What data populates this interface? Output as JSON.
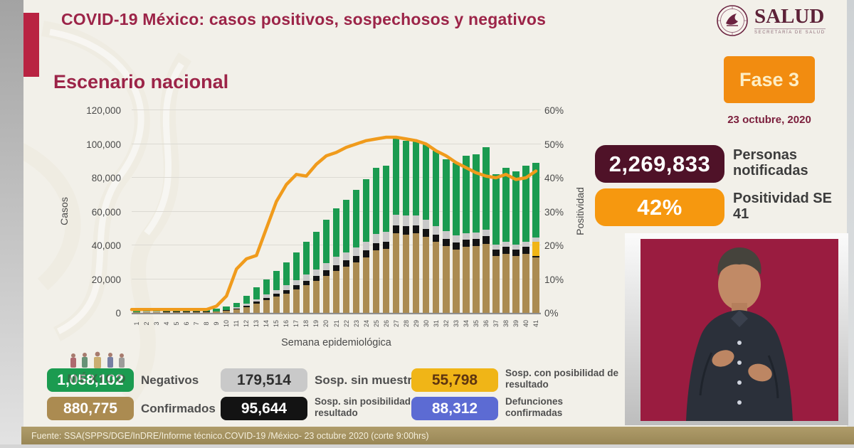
{
  "header": {
    "title": "COVID-19 México: casos positivos, sospechosos y negativos",
    "logo": {
      "name": "SALUD",
      "sub": "SECRETARÍA DE SALUD"
    }
  },
  "section_title": "Escenario nacional",
  "phase": {
    "label": "Fase 3",
    "date": "23 octubre, 2020",
    "color": "#f28c10"
  },
  "stats": [
    {
      "value": "2,269,833",
      "label": "Personas notificadas",
      "color": "#4f1228"
    },
    {
      "value": "42%",
      "label": "Positividad SE 41",
      "color": "#f6980f"
    }
  ],
  "chart_data": {
    "type": "bar",
    "title": "Escenario nacional",
    "xlabel": "Semana epidemiológica",
    "ylabel_left": "Casos",
    "ylabel_right": "Positividad",
    "ylim_left": [
      0,
      120000
    ],
    "ylim_right": [
      0,
      60
    ],
    "grid": true,
    "legend_position": "bottom",
    "y_ticks_left": [
      "0",
      "20,000",
      "40,000",
      "60,000",
      "80,000",
      "100,000",
      "120,000"
    ],
    "y_ticks_right": [
      "0%",
      "10%",
      "20%",
      "30%",
      "40%",
      "50%",
      "60%"
    ],
    "x": [
      1,
      2,
      3,
      4,
      5,
      6,
      7,
      8,
      9,
      10,
      11,
      12,
      13,
      14,
      15,
      16,
      17,
      18,
      19,
      20,
      21,
      22,
      23,
      24,
      25,
      26,
      27,
      28,
      29,
      30,
      31,
      32,
      33,
      34,
      35,
      36,
      37,
      38,
      39,
      40,
      41
    ],
    "series": [
      {
        "name": "Confirmados",
        "color": "#ab8b51",
        "values": [
          400,
          500,
          500,
          550,
          550,
          600,
          550,
          600,
          700,
          1200,
          2000,
          3500,
          5500,
          7500,
          9500,
          11500,
          14000,
          16500,
          19000,
          22000,
          25000,
          27500,
          30000,
          33000,
          37000,
          38000,
          47000,
          46500,
          47000,
          45000,
          42000,
          39500,
          37500,
          39000,
          39500,
          41000,
          33500,
          35000,
          33500,
          35000,
          33000
        ]
      },
      {
        "name": "Sosp. sin posibilidad de resultado",
        "color": "#131313",
        "values": [
          100,
          100,
          100,
          100,
          100,
          150,
          100,
          150,
          150,
          300,
          500,
          800,
          1100,
          1400,
          1700,
          2000,
          2300,
          2600,
          2900,
          3200,
          3400,
          3600,
          3800,
          4000,
          4300,
          4300,
          5000,
          5000,
          4800,
          4600,
          4400,
          4200,
          4000,
          4200,
          4300,
          4400,
          4000,
          4200,
          4000,
          4200,
          500
        ]
      },
      {
        "name": "Sosp. con posibilidad de resultado",
        "color": "#f0b517",
        "values": [
          0,
          0,
          0,
          0,
          0,
          0,
          0,
          0,
          0,
          0,
          0,
          0,
          0,
          0,
          0,
          0,
          0,
          0,
          0,
          0,
          0,
          0,
          0,
          0,
          0,
          0,
          0,
          0,
          0,
          0,
          0,
          0,
          0,
          0,
          0,
          0,
          0,
          0,
          0,
          0,
          8500
        ]
      },
      {
        "name": "Sosp. sin muestra",
        "color": "#c9c9c9",
        "values": [
          100,
          100,
          100,
          150,
          150,
          150,
          150,
          150,
          150,
          400,
          700,
          1200,
          1600,
          2000,
          2400,
          2800,
          3200,
          3600,
          4000,
          4300,
          4700,
          4900,
          5100,
          5300,
          5500,
          5500,
          6000,
          6000,
          5800,
          5400,
          5000,
          4600,
          4200,
          4000,
          3900,
          3800,
          3000,
          3000,
          2800,
          2800,
          2500
        ]
      },
      {
        "name": "Negativos",
        "color": "#1b9b50",
        "values": [
          900,
          1300,
          1300,
          1400,
          1400,
          1600,
          1400,
          1600,
          1500,
          2100,
          2800,
          4500,
          6800,
          9100,
          11400,
          13700,
          16500,
          19300,
          22100,
          25500,
          28900,
          31000,
          34100,
          36700,
          39200,
          39200,
          45000,
          44500,
          44400,
          45000,
          44600,
          42700,
          43300,
          45800,
          46300,
          48800,
          41500,
          43800,
          43700,
          45000,
          44500
        ]
      }
    ],
    "line": {
      "name": "Positividad",
      "axis": "right",
      "color": "#f09b1c",
      "values": [
        1,
        1,
        1,
        1,
        1,
        1,
        1,
        1,
        2,
        5,
        13,
        16,
        17,
        25,
        33,
        38,
        41,
        40.5,
        44,
        46.5,
        47.5,
        49,
        50,
        51,
        51.5,
        52,
        52,
        51.5,
        51,
        50,
        48,
        46.5,
        44.5,
        43,
        41.5,
        40.5,
        40,
        41,
        39.5,
        40,
        42
      ]
    }
  },
  "legend": {
    "items": [
      {
        "value": "1,058,102",
        "label": "Negativos",
        "color": "#1b9b50",
        "text": "#ffffff"
      },
      {
        "value": "179,514",
        "label": "Sosp. sin muestra",
        "color": "#c9c9c9",
        "text": "#2e2e2e"
      },
      {
        "value": "55,798",
        "label": "Sosp. con posibilidad de resultado",
        "color": "#f0b517",
        "text": "#5e3510"
      },
      {
        "value": "880,775",
        "label": "Confirmados",
        "color": "#ab8b51",
        "text": "#ffffff"
      },
      {
        "value": "95,644",
        "label": "Sosp. sin posibilidad de resultado",
        "color": "#131313",
        "text": "#ffffff"
      },
      {
        "value": "88,312",
        "label": "Defunciones confirmadas",
        "color": "#5c6bd3",
        "text": "#ffffff"
      }
    ]
  },
  "watermark": {
    "text": "MÉXICO"
  },
  "icons": {
    "seal": "salud-eagle-seal",
    "watermark_logo": "mexico-government-logo",
    "interpreter": "sign-language-interpreter"
  },
  "footer": {
    "source": "Fuente: SSA(SPPS/DGE/InDRE/Informe técnico.COVID-19 /México- 23 octubre 2020 (corte 9:00hrs)"
  }
}
